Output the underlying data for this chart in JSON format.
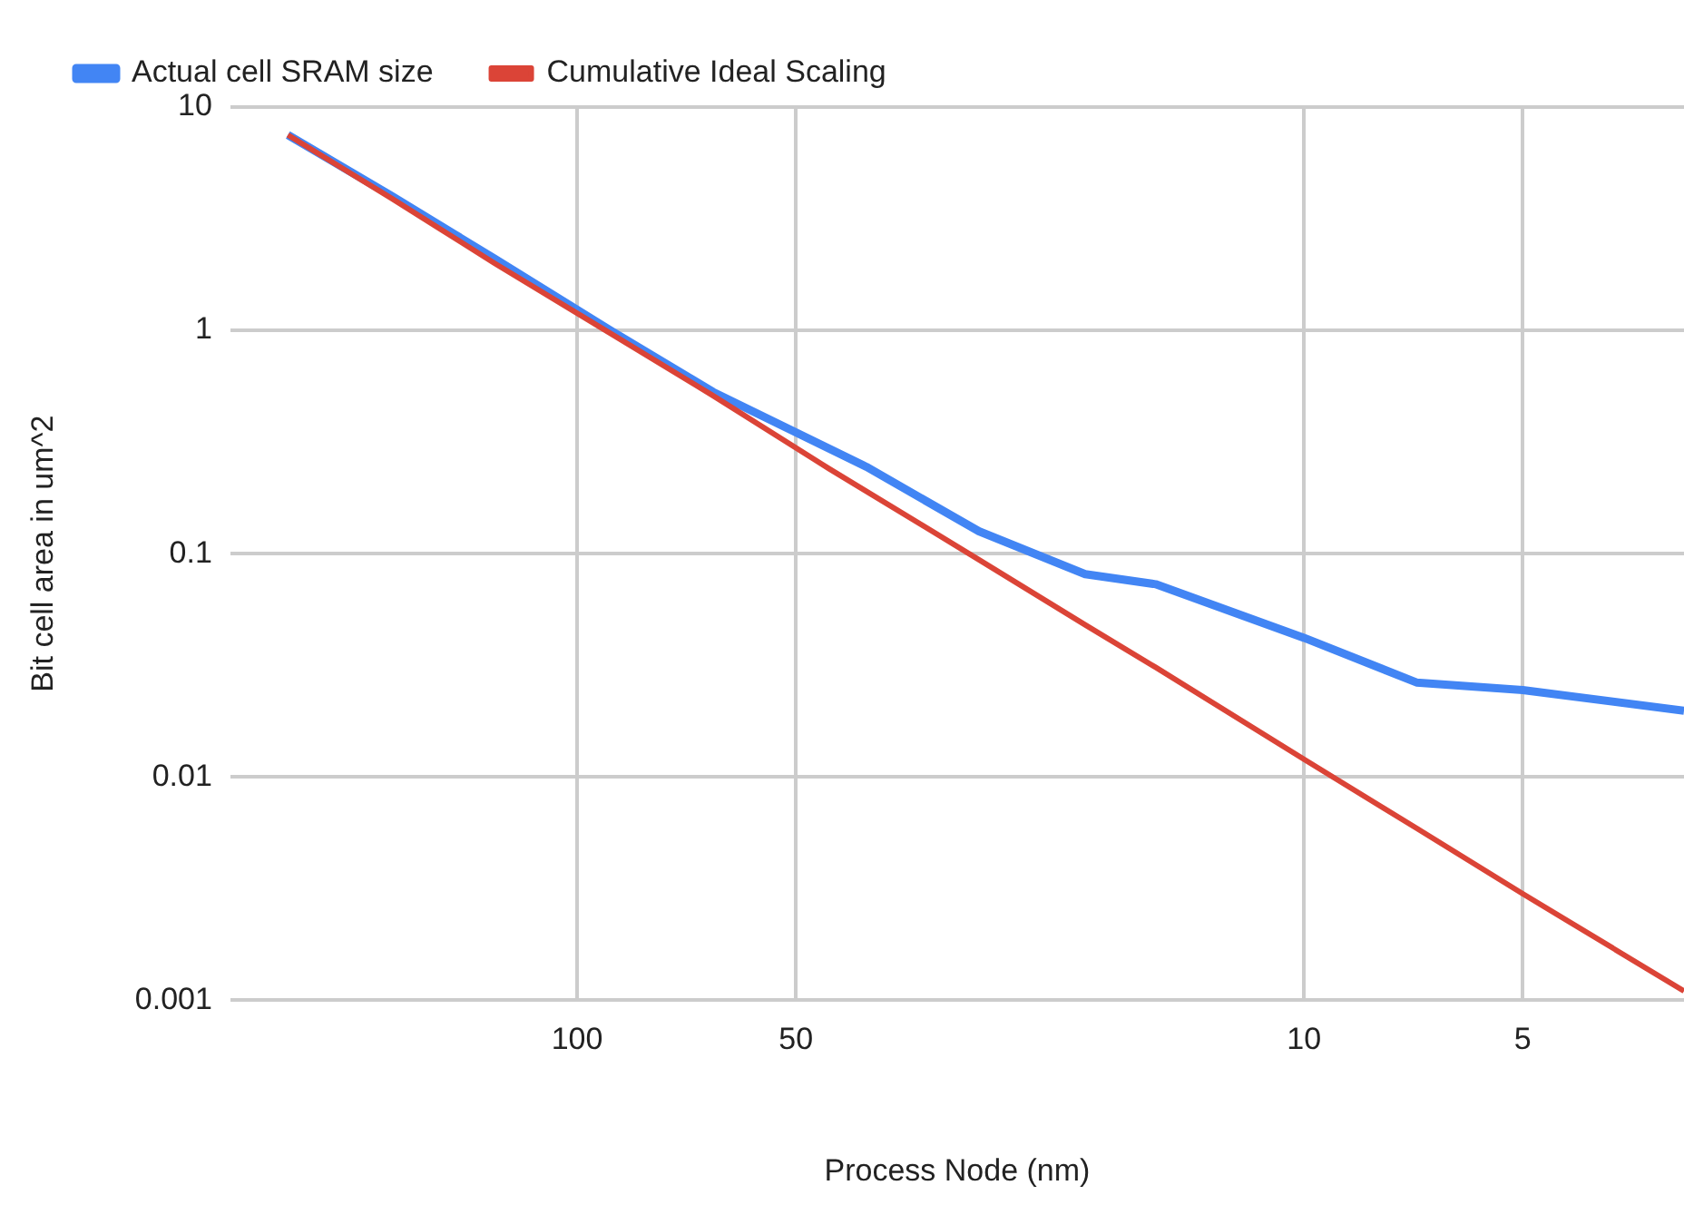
{
  "chart_data": {
    "type": "line",
    "xlabel": "Process Node (nm)",
    "ylabel": "Bit cell area in um^2",
    "log": "xy",
    "grid": true,
    "legend": "top",
    "marker": "none",
    "line_style": "solid",
    "xlim": [
      300,
      3
    ],
    "xticks": [
      100,
      50,
      10,
      5
    ],
    "ylim": [
      0.001,
      10
    ],
    "yticks": [
      0.001,
      0.01,
      0.1,
      1,
      10
    ],
    "series": [
      {
        "name": "Actual cell SRAM size",
        "color": "#4285f4",
        "x": [
          250,
          180,
          130,
          90,
          65,
          40,
          28,
          20,
          16,
          10,
          7,
          5,
          3
        ],
        "values": [
          7.5,
          4,
          2.1,
          1.0,
          0.53,
          0.245,
          0.126,
          0.081,
          0.073,
          0.042,
          0.0265,
          0.0245,
          0.0198
        ]
      },
      {
        "name": "Cumulative Ideal Scaling",
        "color": "#db4437",
        "x": [
          250,
          180,
          130,
          90,
          65,
          45,
          28,
          20,
          16,
          10,
          7,
          5,
          3
        ],
        "values": [
          7.5,
          3.9,
          2.0,
          0.97,
          0.51,
          0.24,
          0.094,
          0.048,
          0.031,
          0.012,
          0.0059,
          0.003,
          0.0011
        ]
      }
    ]
  }
}
